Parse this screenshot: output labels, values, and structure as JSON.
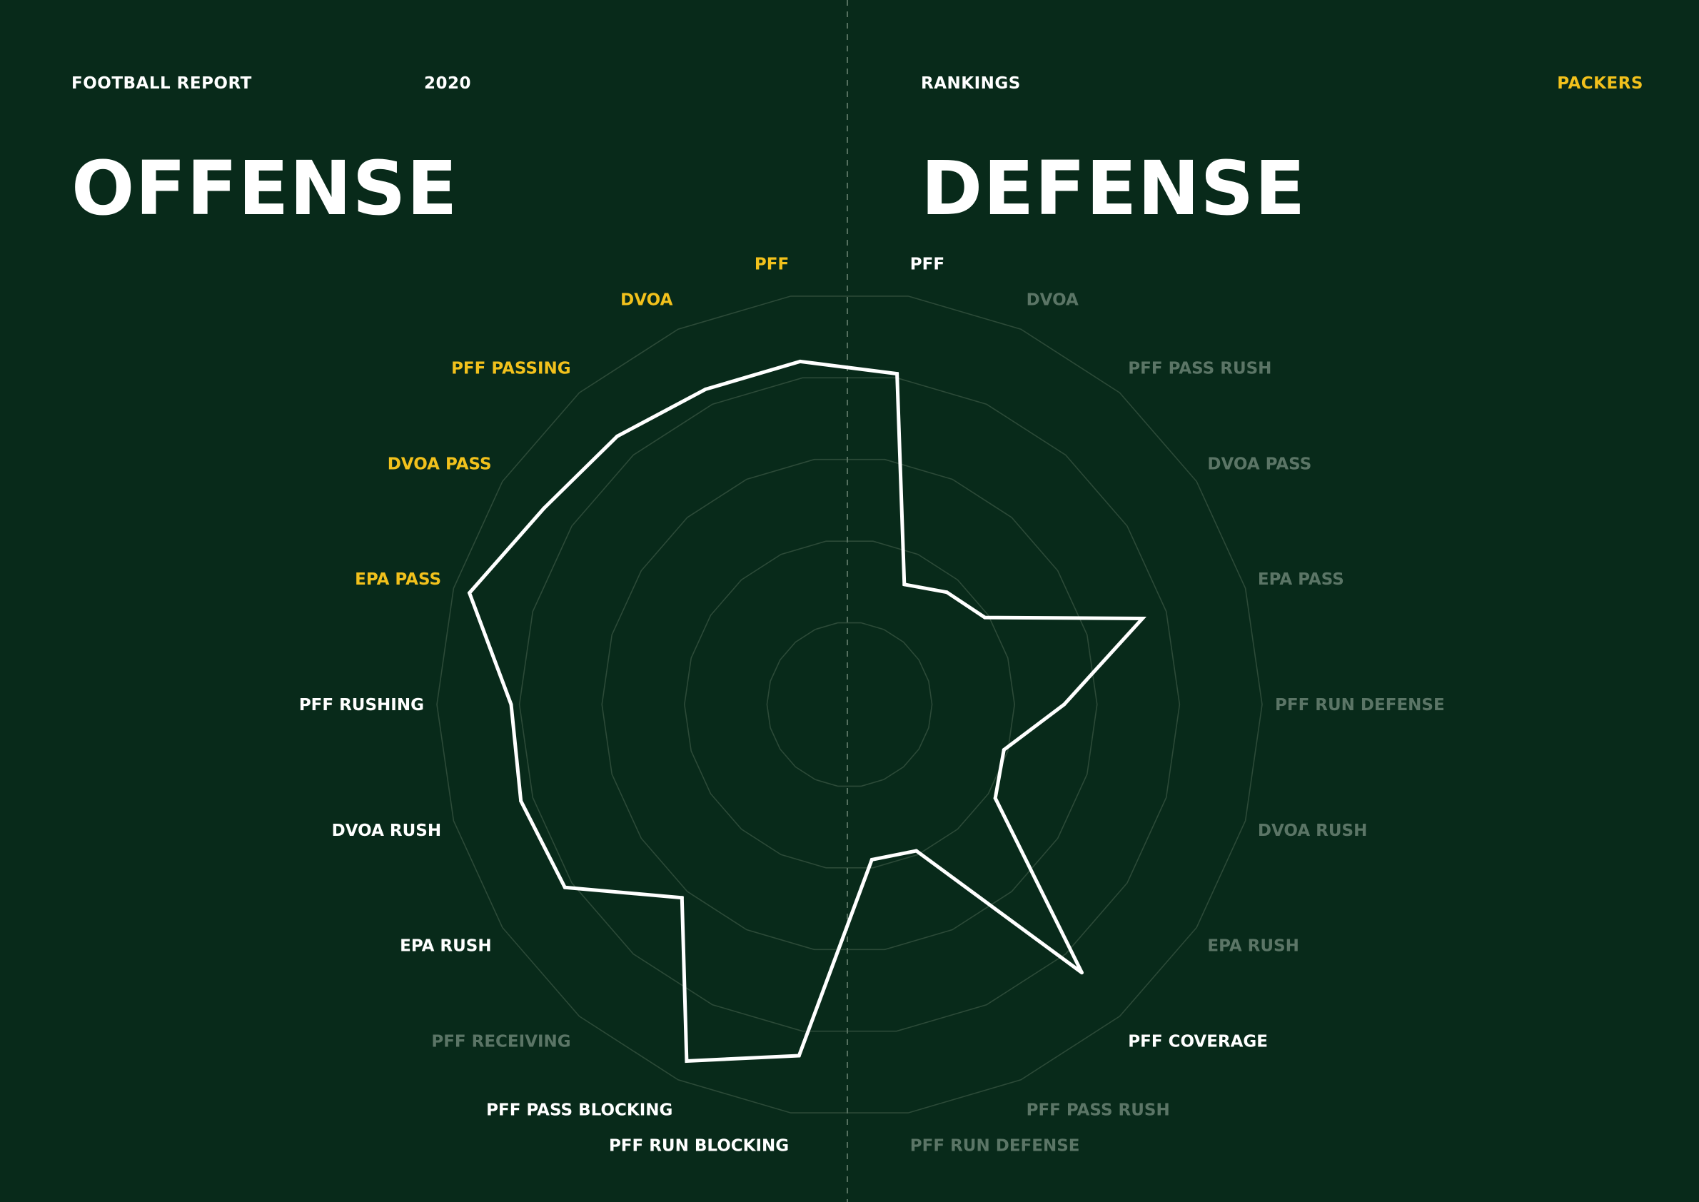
{
  "header": {
    "report": "FOOTBALL REPORT",
    "year": "2020",
    "section": "RANKINGS",
    "team": "PACKERS"
  },
  "titles": {
    "offense": "OFFENSE",
    "defense": "DEFENSE"
  },
  "colors": {
    "background": "#082a1a",
    "accent": "#f2c11c",
    "white": "#ffffff",
    "muted": "#5b7566",
    "grid": "#2c4a38"
  },
  "chart_data": {
    "type": "radar",
    "title": "",
    "rings": 5,
    "series": [
      {
        "group": "offense",
        "axes": [
          "PFF",
          "DVOA",
          "PFF PASSING",
          "DVOA PASS",
          "EPA PASS",
          "PFF RUSHING",
          "DVOA RUSH",
          "EPA RUSH",
          "PFF RECEIVING",
          "PFF PASS BLOCKING",
          "PFF RUN BLOCKING"
        ],
        "values": [
          0.84,
          0.84,
          0.86,
          0.88,
          0.96,
          0.82,
          0.83,
          0.82,
          0.62,
          0.95,
          0.86
        ],
        "label_colors": [
          "accent",
          "accent",
          "accent",
          "accent",
          "accent",
          "white",
          "white",
          "white",
          "muted",
          "white",
          "white"
        ]
      },
      {
        "group": "defense",
        "axes": [
          "PFF",
          "DVOA",
          "PFF PASS RUSH",
          "DVOA PASS",
          "EPA PASS",
          "PFF RUN DEFENSE",
          "DVOA RUSH",
          "EPA RUSH",
          "PFF COVERAGE",
          "PFF PASS RUSH",
          "PFF RUN DEFENSE"
        ],
        "values": [
          0.81,
          0.32,
          0.36,
          0.39,
          0.74,
          0.52,
          0.39,
          0.42,
          0.86,
          0.39,
          0.38
        ],
        "label_colors": [
          "white",
          "muted",
          "muted",
          "muted",
          "muted",
          "muted",
          "muted",
          "muted",
          "white",
          "muted",
          "muted"
        ]
      }
    ]
  }
}
